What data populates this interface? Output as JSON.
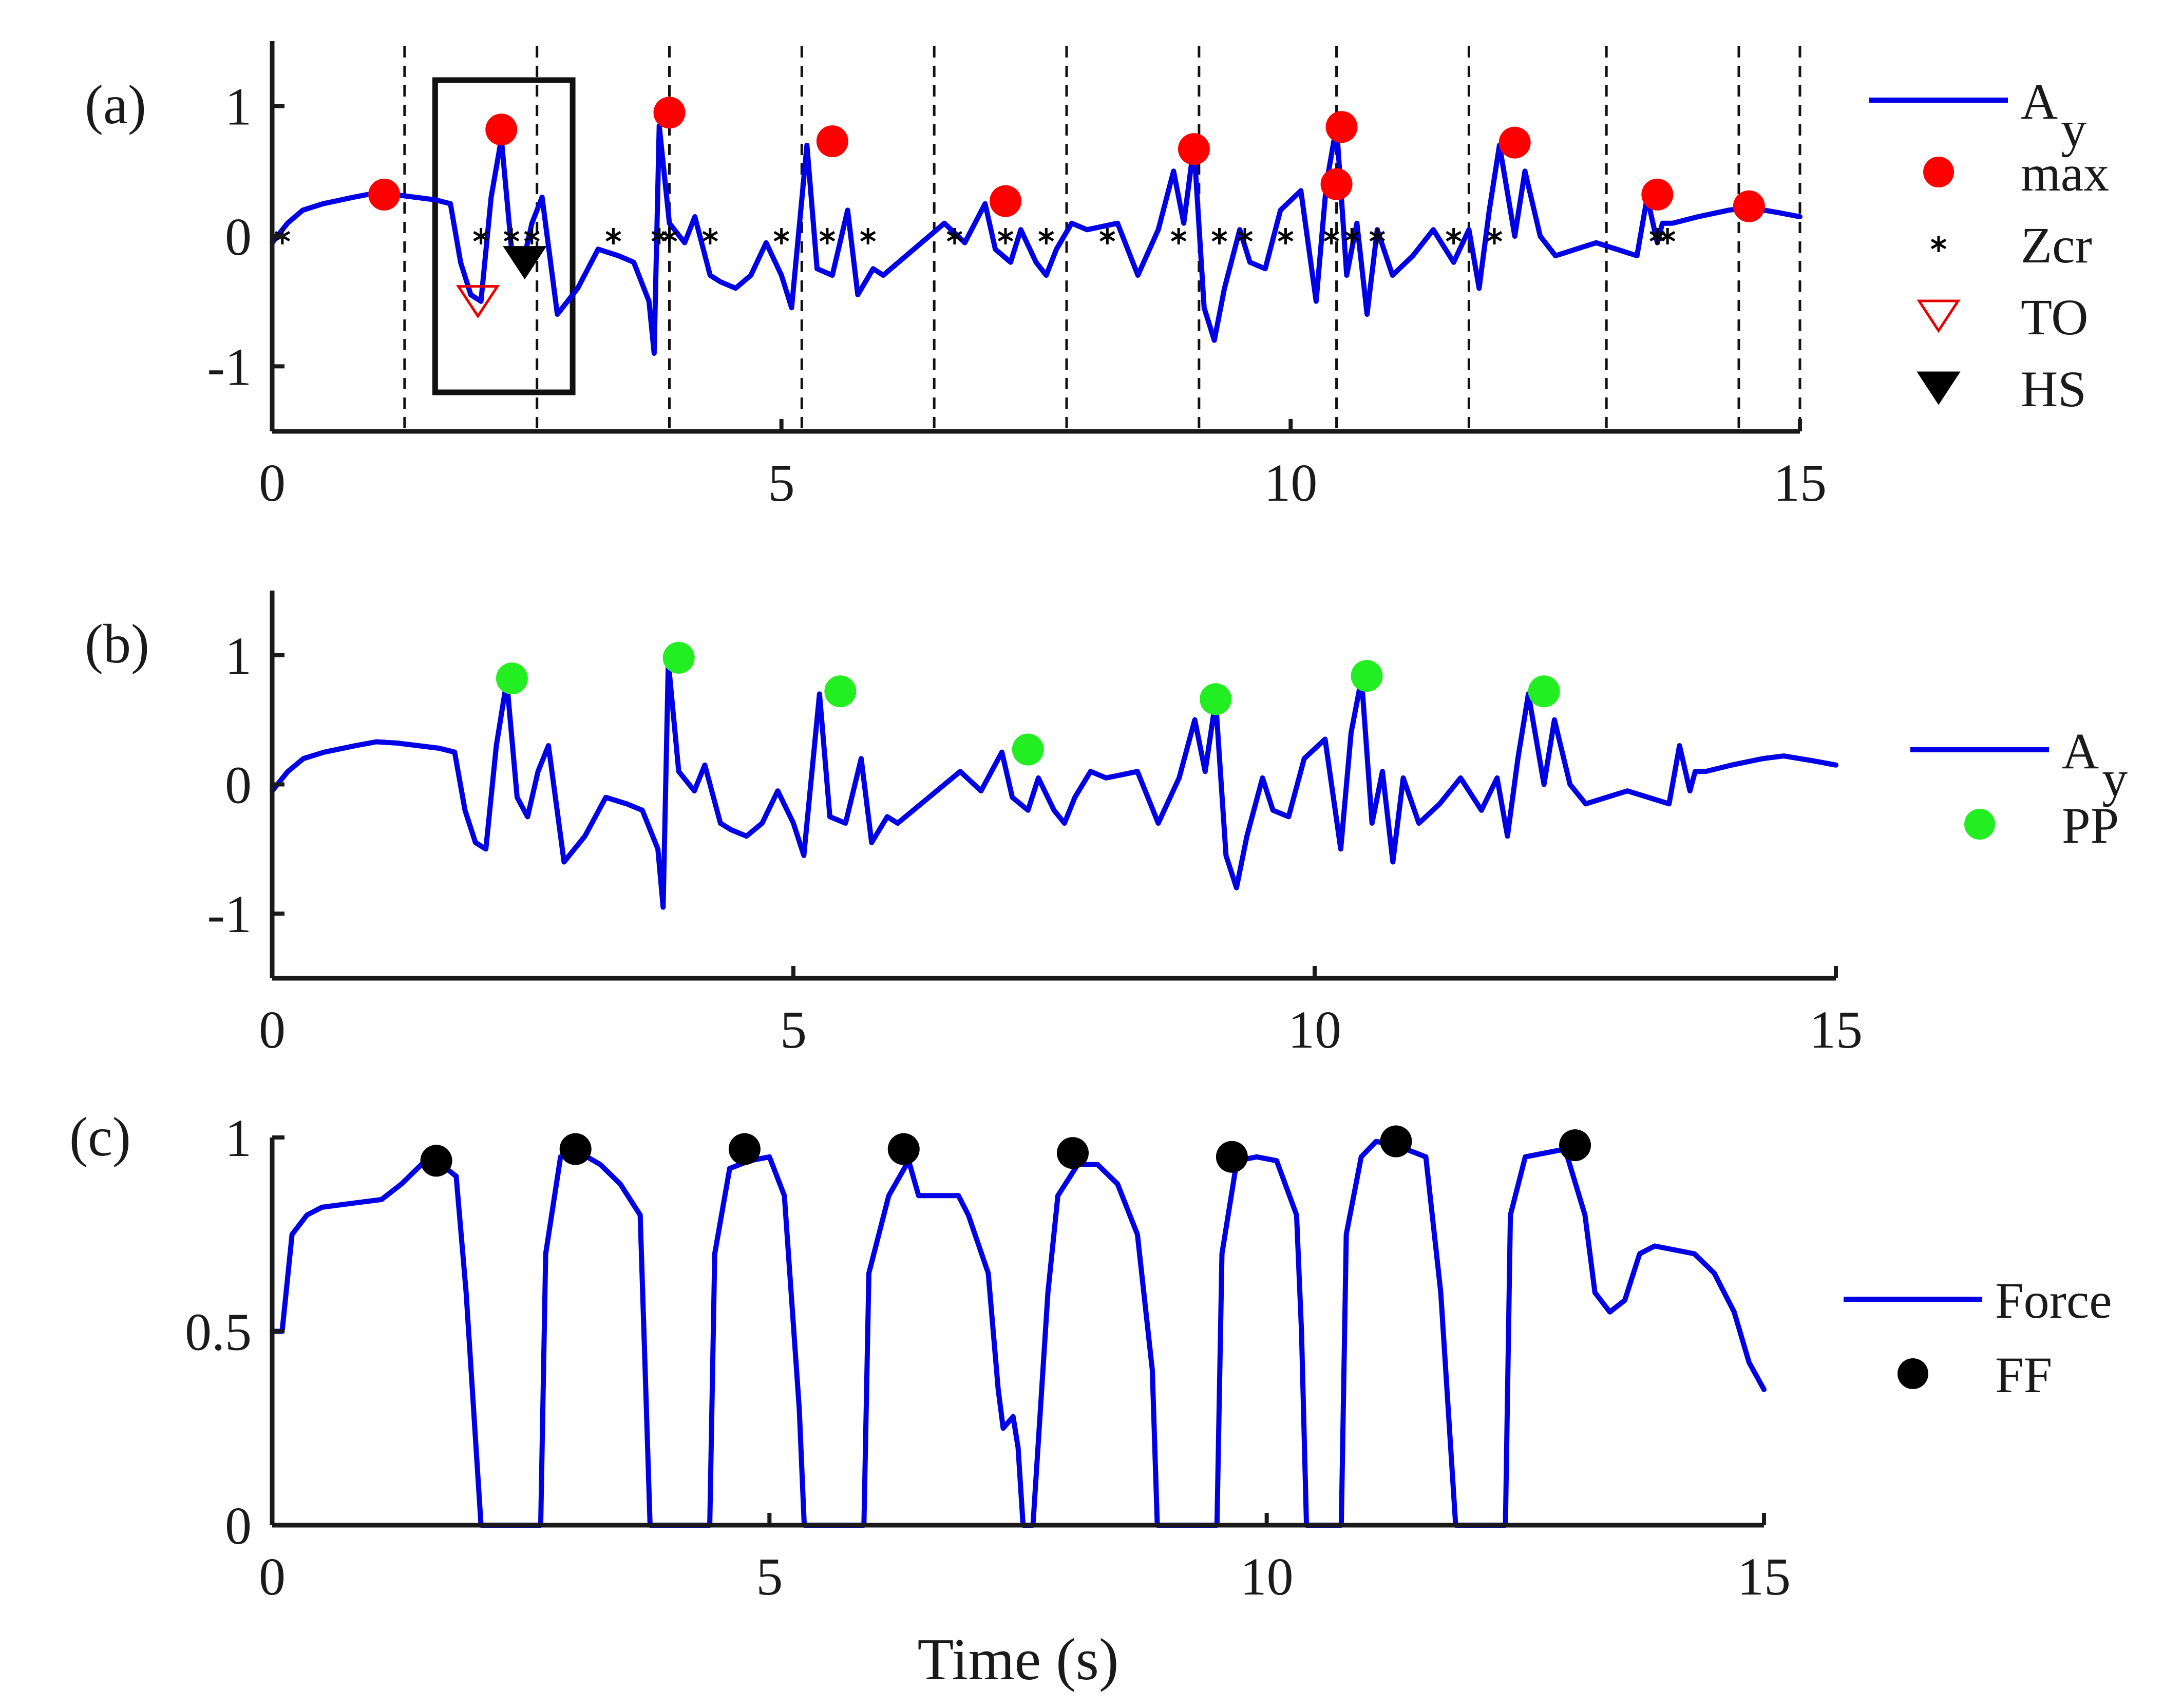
{
  "chart_data": [
    {
      "id": "a",
      "type": "line",
      "panel_label": "(a)",
      "xlim": [
        0,
        15
      ],
      "ylim": [
        -1.5,
        1.5
      ],
      "xticks": [
        0,
        5,
        10,
        15
      ],
      "xtick_labels": [
        "0",
        "5",
        "10",
        "15"
      ],
      "yticks": [
        1,
        0,
        -1
      ],
      "ytick_labels": [
        "1",
        "0",
        "-1"
      ],
      "series": [
        {
          "name": "A_y",
          "color": "#0000e6",
          "x": [
            0,
            0.15,
            0.3,
            0.5,
            0.8,
            1.0,
            1.2,
            1.4,
            1.6,
            1.75,
            1.85,
            1.95,
            2.05,
            2.15,
            2.25,
            2.35,
            2.45,
            2.55,
            2.65,
            2.8,
            2.9,
            3.0,
            3.2,
            3.4,
            3.55,
            3.7,
            3.75,
            3.8,
            3.9,
            4.05,
            4.15,
            4.3,
            4.4,
            4.55,
            4.7,
            4.85,
            5.0,
            5.1,
            5.25,
            5.35,
            5.5,
            5.65,
            5.75,
            5.9,
            6.0,
            6.3,
            6.6,
            6.8,
            7.0,
            7.1,
            7.25,
            7.35,
            7.5,
            7.6,
            7.7,
            7.85,
            8.0,
            8.3,
            8.5,
            8.7,
            8.85,
            8.95,
            9.05,
            9.15,
            9.25,
            9.35,
            9.5,
            9.6,
            9.75,
            9.9,
            10.1,
            10.25,
            10.35,
            10.45,
            10.55,
            10.65,
            10.75,
            10.85,
            11.0,
            11.2,
            11.4,
            11.6,
            11.75,
            11.85,
            11.95,
            12.05,
            12.2,
            12.3,
            12.45,
            12.6,
            12.8,
            13.0,
            13.2,
            13.4,
            13.5,
            13.6,
            13.65,
            13.75,
            14.0,
            14.3,
            14.5,
            14.8,
            15.0
          ],
          "y": [
            -0.05,
            0.1,
            0.2,
            0.25,
            0.3,
            0.33,
            0.32,
            0.3,
            0.28,
            0.25,
            -0.2,
            -0.45,
            -0.5,
            0.3,
            0.75,
            -0.1,
            -0.25,
            0.1,
            0.3,
            -0.6,
            -0.5,
            -0.4,
            -0.1,
            -0.15,
            -0.2,
            -0.5,
            -0.9,
            0.85,
            0.1,
            -0.05,
            0.15,
            -0.3,
            -0.35,
            -0.4,
            -0.3,
            -0.05,
            -0.3,
            -0.55,
            0.7,
            -0.25,
            -0.3,
            0.2,
            -0.45,
            -0.25,
            -0.3,
            -0.1,
            0.1,
            -0.05,
            0.25,
            -0.1,
            -0.2,
            0.05,
            -0.2,
            -0.3,
            -0.1,
            0.1,
            0.05,
            0.1,
            -0.3,
            0.05,
            0.5,
            0.1,
            0.7,
            -0.55,
            -0.8,
            -0.4,
            0.05,
            -0.2,
            -0.25,
            0.2,
            0.35,
            -0.5,
            0.4,
            0.85,
            -0.3,
            0.1,
            -0.6,
            0.05,
            -0.3,
            -0.15,
            0.05,
            -0.2,
            0.05,
            -0.4,
            0.2,
            0.7,
            0.0,
            0.5,
            0.0,
            -0.15,
            -0.1,
            -0.05,
            -0.1,
            -0.15,
            0.3,
            -0.05,
            0.1,
            0.1,
            0.15,
            0.2,
            0.22,
            0.18,
            0.15
          ]
        }
      ],
      "markers": {
        "max": {
          "x": [
            1.1,
            2.25,
            3.9,
            5.5,
            7.2,
            9.05,
            10.5,
            10.45,
            12.2,
            13.6,
            14.5
          ],
          "y": [
            0.32,
            0.82,
            0.95,
            0.73,
            0.27,
            0.67,
            0.84,
            0.4,
            0.72,
            0.32,
            0.23
          ]
        },
        "zcr": {
          "x": [
            0.1,
            2.05,
            2.35,
            2.55,
            3.35,
            3.8,
            3.9,
            4.3,
            5.0,
            5.45,
            5.85,
            6.7,
            7.2,
            7.6,
            8.2,
            8.9,
            9.3,
            9.55,
            9.95,
            10.4,
            10.6,
            10.85,
            11.6,
            12.0,
            13.6,
            13.7
          ],
          "y": [
            0,
            0,
            0,
            0,
            0,
            0,
            0,
            0,
            0,
            0,
            0,
            0,
            0,
            0,
            0,
            0,
            0,
            0,
            0,
            0,
            0,
            0,
            0,
            0,
            0,
            0
          ]
        },
        "to": {
          "x": [
            2.02
          ],
          "y": [
            -0.5
          ]
        },
        "hs": {
          "x": [
            2.48
          ],
          "y": [
            -0.2
          ]
        }
      },
      "vlines": [
        1.3,
        2.6,
        3.9,
        5.2,
        6.5,
        7.8,
        9.1,
        10.45,
        11.75,
        13.1,
        14.4,
        15.0
      ],
      "highlight_box": {
        "x": [
          1.6,
          2.95
        ],
        "y": [
          -1.2,
          1.2
        ]
      },
      "legend": [
        {
          "kind": "line",
          "label": "A",
          "subscript": "y"
        },
        {
          "kind": "max",
          "label": "max"
        },
        {
          "kind": "zcr",
          "label": "Zcr"
        },
        {
          "kind": "to",
          "label": "TO"
        },
        {
          "kind": "hs",
          "label": "HS"
        }
      ]
    },
    {
      "id": "b",
      "type": "line",
      "panel_label": "(b)",
      "xlim": [
        0,
        15
      ],
      "ylim": [
        -1.5,
        1.5
      ],
      "xticks": [
        0,
        5,
        10,
        15
      ],
      "xtick_labels": [
        "0",
        "5",
        "10",
        "15"
      ],
      "yticks": [
        1,
        0,
        -1
      ],
      "ytick_labels": [
        "1",
        "0",
        "-1"
      ],
      "series": [
        {
          "name": "A_y",
          "color": "#0000e6",
          "x": [
            0,
            0.15,
            0.3,
            0.5,
            0.8,
            1.0,
            1.2,
            1.4,
            1.6,
            1.75,
            1.85,
            1.95,
            2.05,
            2.15,
            2.25,
            2.35,
            2.45,
            2.55,
            2.65,
            2.8,
            2.9,
            3.0,
            3.2,
            3.4,
            3.55,
            3.7,
            3.75,
            3.8,
            3.9,
            4.05,
            4.15,
            4.3,
            4.4,
            4.55,
            4.7,
            4.85,
            5.0,
            5.1,
            5.25,
            5.35,
            5.5,
            5.65,
            5.75,
            5.9,
            6.0,
            6.3,
            6.6,
            6.8,
            7.0,
            7.1,
            7.25,
            7.35,
            7.5,
            7.6,
            7.7,
            7.85,
            8.0,
            8.3,
            8.5,
            8.7,
            8.85,
            8.95,
            9.05,
            9.15,
            9.25,
            9.35,
            9.5,
            9.6,
            9.75,
            9.9,
            10.1,
            10.25,
            10.35,
            10.45,
            10.55,
            10.65,
            10.75,
            10.85,
            11.0,
            11.2,
            11.4,
            11.6,
            11.75,
            11.85,
            11.95,
            12.05,
            12.2,
            12.3,
            12.45,
            12.6,
            12.8,
            13.0,
            13.2,
            13.4,
            13.5,
            13.6,
            13.65,
            13.75,
            14.0,
            14.3,
            14.5,
            14.8,
            15.0
          ],
          "y": [
            -0.05,
            0.1,
            0.2,
            0.25,
            0.3,
            0.33,
            0.32,
            0.3,
            0.28,
            0.25,
            -0.2,
            -0.45,
            -0.5,
            0.3,
            0.8,
            -0.1,
            -0.25,
            0.1,
            0.3,
            -0.6,
            -0.5,
            -0.4,
            -0.1,
            -0.15,
            -0.2,
            -0.5,
            -0.95,
            0.95,
            0.1,
            -0.05,
            0.15,
            -0.3,
            -0.35,
            -0.4,
            -0.3,
            -0.05,
            -0.3,
            -0.55,
            0.7,
            -0.25,
            -0.3,
            0.2,
            -0.45,
            -0.25,
            -0.3,
            -0.1,
            0.1,
            -0.05,
            0.25,
            -0.1,
            -0.2,
            0.05,
            -0.2,
            -0.3,
            -0.1,
            0.1,
            0.05,
            0.1,
            -0.3,
            0.05,
            0.5,
            0.1,
            0.65,
            -0.55,
            -0.8,
            -0.4,
            0.05,
            -0.2,
            -0.25,
            0.2,
            0.35,
            -0.5,
            0.4,
            0.82,
            -0.3,
            0.1,
            -0.6,
            0.05,
            -0.3,
            -0.15,
            0.05,
            -0.2,
            0.05,
            -0.4,
            0.2,
            0.7,
            0.0,
            0.5,
            0.0,
            -0.15,
            -0.1,
            -0.05,
            -0.1,
            -0.15,
            0.3,
            -0.05,
            0.1,
            0.1,
            0.15,
            0.2,
            0.22,
            0.18,
            0.15
          ]
        }
      ],
      "markers": {
        "pp": {
          "x": [
            2.3,
            3.9,
            5.45,
            7.25,
            9.05,
            10.5,
            12.2
          ],
          "y": [
            0.82,
            0.98,
            0.72,
            0.27,
            0.66,
            0.84,
            0.72
          ]
        }
      },
      "legend": [
        {
          "kind": "line",
          "label": "A",
          "subscript": "y"
        },
        {
          "kind": "pp",
          "label": "PP"
        }
      ]
    },
    {
      "id": "c",
      "type": "line",
      "panel_label": "(c)",
      "xlim": [
        0,
        15
      ],
      "ylim": [
        0,
        1
      ],
      "xticks": [
        0,
        5,
        10,
        15
      ],
      "xtick_labels": [
        "0",
        "5",
        "10",
        "15"
      ],
      "yticks": [
        1,
        0.5,
        0
      ],
      "ytick_labels": [
        "1",
        "0.5",
        "0"
      ],
      "xlabel": "Time (s)",
      "series": [
        {
          "name": "Force",
          "color": "#0000e6",
          "x": [
            0,
            0.1,
            0.2,
            0.35,
            0.5,
            0.8,
            1.1,
            1.3,
            1.5,
            1.7,
            1.85,
            1.95,
            2.05,
            2.1,
            2.7,
            2.75,
            2.9,
            3.1,
            3.3,
            3.5,
            3.7,
            3.75,
            3.8,
            4.4,
            4.45,
            4.6,
            4.8,
            5.0,
            5.15,
            5.3,
            5.35,
            5.95,
            6.0,
            6.2,
            6.4,
            6.5,
            6.9,
            7.0,
            7.2,
            7.3,
            7.35,
            7.45,
            7.5,
            7.55,
            7.65,
            7.8,
            7.9,
            8.1,
            8.3,
            8.5,
            8.7,
            8.85,
            8.9,
            9.5,
            9.55,
            9.7,
            9.9,
            10.1,
            10.3,
            10.35,
            10.4,
            10.75,
            10.8,
            10.95,
            11.1,
            11.3,
            11.6,
            11.75,
            11.85,
            11.9,
            12.4,
            12.45,
            12.6,
            12.8,
            13.0,
            13.2,
            13.3,
            13.45,
            13.6,
            13.75,
            13.9,
            14.1,
            14.3,
            14.5,
            14.7,
            14.85,
            15.0
          ],
          "y": [
            0.5,
            0.5,
            0.75,
            0.8,
            0.82,
            0.83,
            0.84,
            0.88,
            0.93,
            0.93,
            0.9,
            0.6,
            0.2,
            0.0,
            0.0,
            0.7,
            0.95,
            0.96,
            0.93,
            0.88,
            0.8,
            0.4,
            0.0,
            0.0,
            0.7,
            0.92,
            0.94,
            0.95,
            0.85,
            0.3,
            0.0,
            0.0,
            0.65,
            0.85,
            0.94,
            0.85,
            0.85,
            0.8,
            0.65,
            0.35,
            0.25,
            0.28,
            0.2,
            0.0,
            0.0,
            0.6,
            0.85,
            0.93,
            0.93,
            0.88,
            0.75,
            0.4,
            0.0,
            0.0,
            0.7,
            0.94,
            0.95,
            0.94,
            0.8,
            0.5,
            0.0,
            0.0,
            0.75,
            0.95,
            0.99,
            0.98,
            0.95,
            0.6,
            0.2,
            0.0,
            0.0,
            0.8,
            0.95,
            0.96,
            0.97,
            0.8,
            0.6,
            0.55,
            0.58,
            0.7,
            0.72,
            0.71,
            0.7,
            0.65,
            0.55,
            0.42,
            0.35
          ]
        }
      ],
      "markers": {
        "ff": {
          "x": [
            1.65,
            3.05,
            4.75,
            6.35,
            8.05,
            9.65,
            11.3,
            13.1
          ],
          "y": [
            0.94,
            0.97,
            0.97,
            0.97,
            0.96,
            0.95,
            0.99,
            0.98
          ]
        }
      },
      "legend": [
        {
          "kind": "line",
          "label": "Force"
        },
        {
          "kind": "ff",
          "label": "FF"
        }
      ]
    }
  ],
  "colors": {
    "signal": "#0000e6",
    "max": "#ff0000",
    "pp": "#22ee22",
    "to": "#e60000",
    "hs": "#000000",
    "ff": "#000000",
    "zcr": "#000000"
  }
}
